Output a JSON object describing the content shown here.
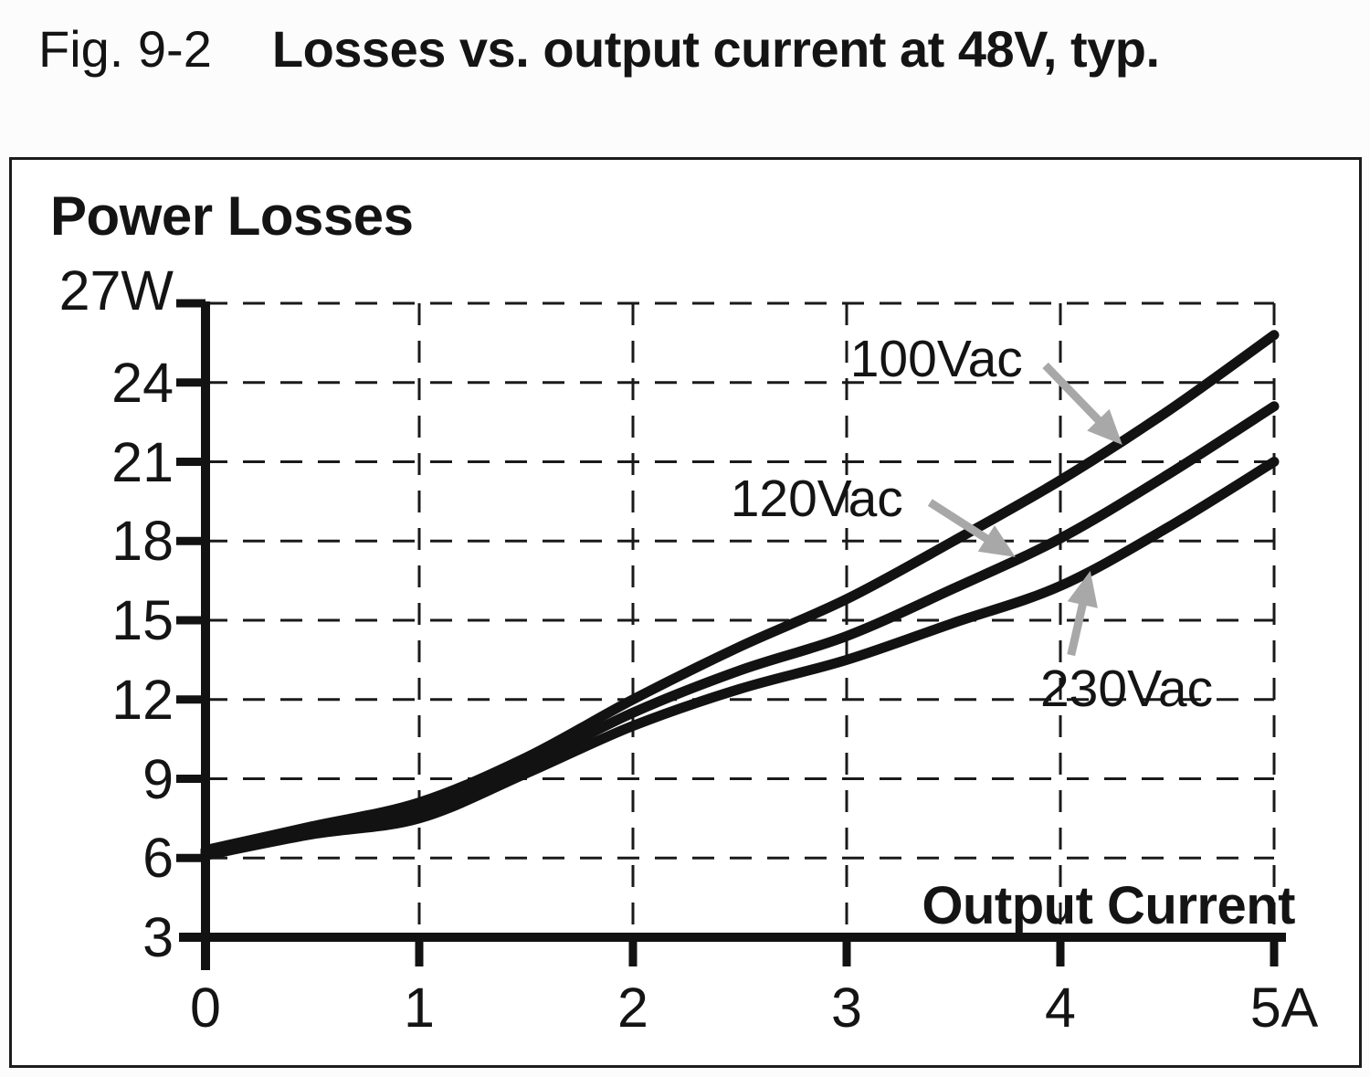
{
  "figure": {
    "fig_label": "Fig. 9-2",
    "title": "Losses vs. output current at 48V, typ."
  },
  "chart_data": {
    "type": "line",
    "title": "Losses vs. output current at 48V, typ.",
    "ylabel": "Power Losses",
    "xlabel": "Output Current",
    "y_axis": {
      "unit": "W",
      "min": 3,
      "max": 27,
      "tick_values": [
        27,
        24,
        21,
        18,
        15,
        12,
        9,
        6,
        3
      ],
      "tick_labels": [
        "27W",
        "24",
        "21",
        "18",
        "15",
        "12",
        "9",
        "6",
        "3"
      ]
    },
    "x_axis": {
      "unit": "A",
      "min": 0,
      "max": 5,
      "tick_values": [
        0,
        1,
        2,
        3,
        4,
        5
      ],
      "tick_labels": [
        "0",
        "1",
        "2",
        "3",
        "4",
        "5A"
      ]
    },
    "grid": {
      "style": "dashed",
      "horizontal_at": [
        6,
        9,
        12,
        15,
        18,
        21,
        24,
        27
      ],
      "vertical_at": [
        1,
        2,
        3,
        4,
        5
      ]
    },
    "x": [
      0,
      0.5,
      1,
      1.5,
      2,
      2.5,
      3,
      3.5,
      4,
      4.5,
      5
    ],
    "series": [
      {
        "name": "100Vac",
        "values": [
          6.3,
          7.2,
          8.1,
          9.8,
          12.0,
          14.0,
          15.8,
          18.0,
          20.3,
          22.9,
          25.8
        ]
      },
      {
        "name": "120Vac",
        "values": [
          6.2,
          7.0,
          7.8,
          9.5,
          11.5,
          13.1,
          14.4,
          16.2,
          18.1,
          20.5,
          23.1
        ]
      },
      {
        "name": "230Vac",
        "values": [
          6.1,
          6.9,
          7.5,
          9.2,
          11.0,
          12.4,
          13.5,
          14.9,
          16.3,
          18.5,
          21.0
        ]
      }
    ],
    "annotations": [
      {
        "series": "100Vac",
        "label_at": {
          "x": 3.42,
          "y": 24.9
        },
        "arrow_from": {
          "x": 3.93,
          "y": 24.65
        },
        "arrow_to": {
          "x": 4.29,
          "y": 21.64
        }
      },
      {
        "series": "120Vac",
        "label_at": {
          "x": 2.86,
          "y": 19.6
        },
        "arrow_from": {
          "x": 3.39,
          "y": 19.46
        },
        "arrow_to": {
          "x": 3.79,
          "y": 17.39
        }
      },
      {
        "series": "230Vac",
        "label_at": {
          "x": 4.31,
          "y": 12.4
        },
        "arrow_from": {
          "x": 4.05,
          "y": 13.68
        },
        "arrow_to": {
          "x": 4.14,
          "y": 16.87
        }
      }
    ],
    "line_color": "#121212",
    "grid_color": "#1a1a1a",
    "arrow_color": "#a8a8a8",
    "legend_position": "inline-annotations"
  }
}
